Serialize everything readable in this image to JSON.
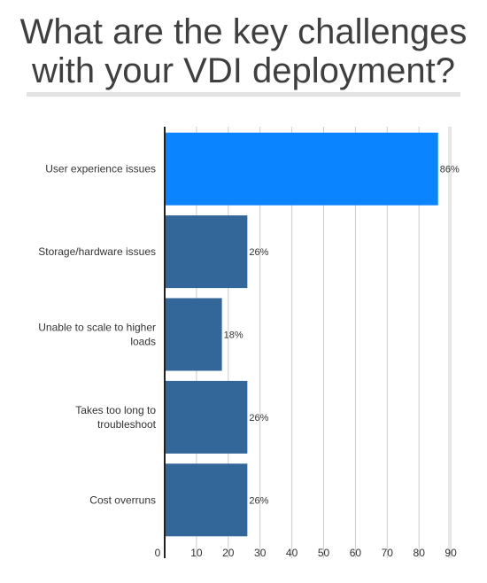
{
  "title_line1": "What are the key challenges",
  "title_line2": "with your VDI deployment?",
  "chart_data": {
    "type": "bar",
    "orientation": "horizontal",
    "title": "What are the key challenges with your VDI deployment?",
    "categories": [
      [
        "User experience issues"
      ],
      [
        "Storage/hardware issues"
      ],
      [
        "Unable to scale to higher",
        "loads"
      ],
      [
        "Takes too long to",
        "troubleshoot"
      ],
      [
        "Cost overruns"
      ]
    ],
    "values": [
      86,
      26,
      18,
      26,
      26
    ],
    "value_labels": [
      "86%",
      "26%",
      "18%",
      "26%",
      "26%"
    ],
    "bar_colors": [
      "#0a84ff",
      "#336699",
      "#336699",
      "#336699",
      "#336699"
    ],
    "xlim": [
      0,
      90
    ],
    "xticks": [
      "0",
      "10",
      "20",
      "30",
      "40",
      "50",
      "60",
      "70",
      "80",
      "90"
    ],
    "grid": true,
    "xlabel": "",
    "ylabel": ""
  },
  "colors": {
    "highlight": "#0a84ff",
    "bar": "#336699",
    "title": "#3f3f3f",
    "grid": "#cccccc"
  }
}
